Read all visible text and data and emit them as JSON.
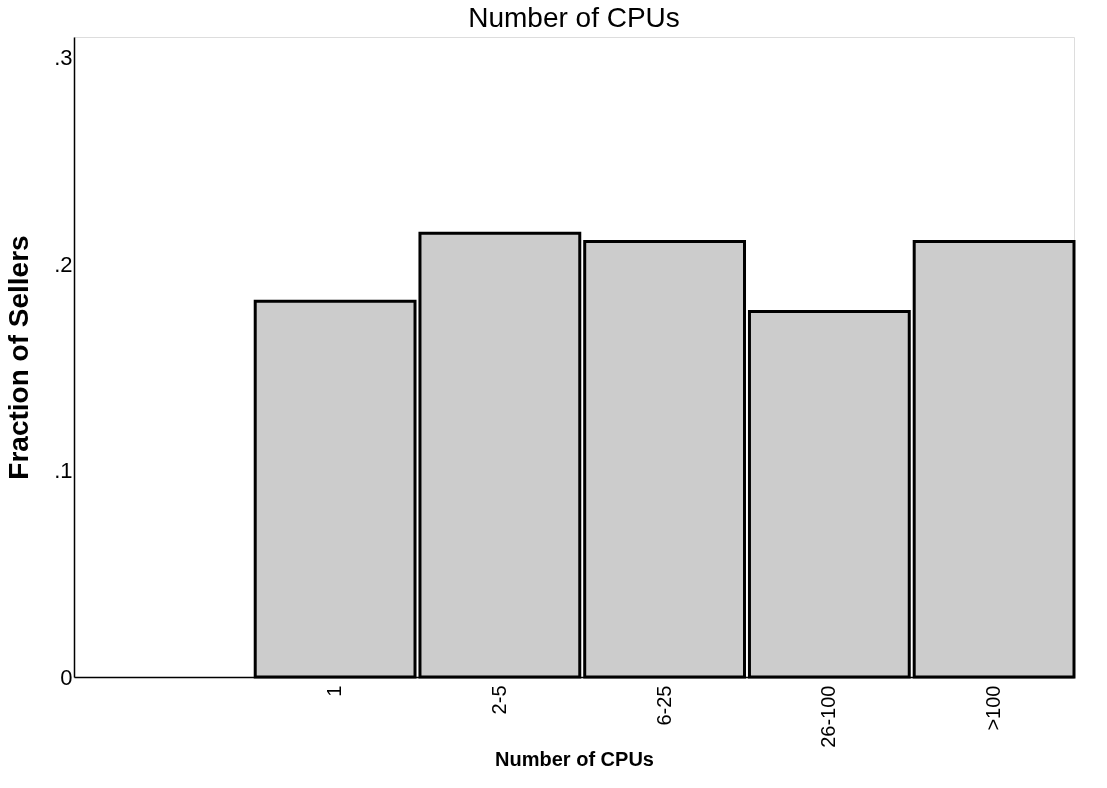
{
  "chart_data": {
    "type": "bar",
    "title": "Number of CPUs",
    "xlabel": "Number of CPUs",
    "ylabel": "Fraction of Sellers",
    "categories": [
      "1",
      "2-5",
      "6-25",
      "26-100",
      ">100"
    ],
    "values": [
      0.182,
      0.215,
      0.211,
      0.177,
      0.211
    ],
    "color": "#cccccc",
    "ylim": [
      0,
      0.31
    ],
    "yticks": [
      {
        "value": 0,
        "label": "0"
      },
      {
        "value": 0.1,
        "label": ".1"
      },
      {
        "value": 0.2,
        "label": ".2"
      },
      {
        "value": 0.3,
        "label": ".3"
      }
    ],
    "grid": false
  }
}
